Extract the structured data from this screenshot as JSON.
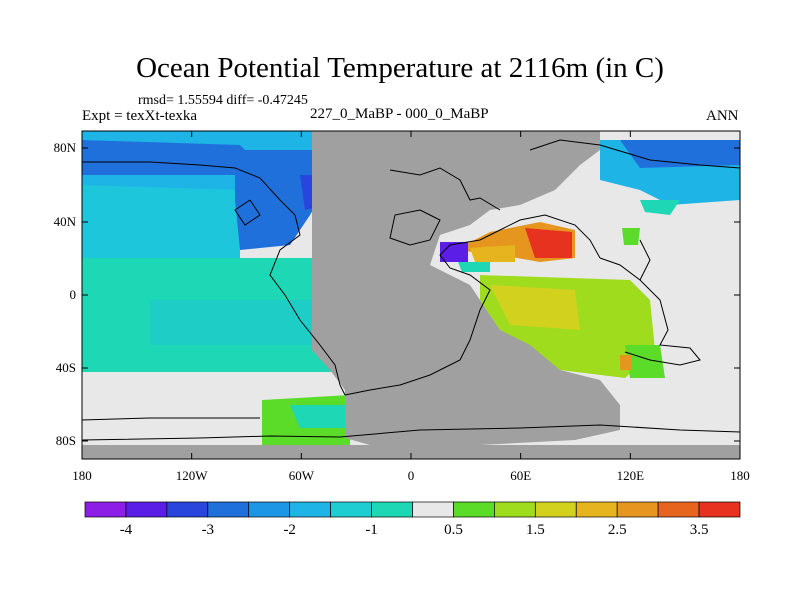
{
  "title": "Ocean Potential Temperature at 2116m (in C)",
  "stats": "rmsd= 1.55594 diff= -0.47245",
  "experiment": "Expt = texXt-texka",
  "comparison": "227_0_MaBP - 000_0_MaBP",
  "season": "ANN",
  "lat_labels": [
    "80N",
    "40N",
    "0",
    "40S",
    "80S"
  ],
  "lon_labels": [
    "180",
    "120W",
    "60W",
    "0",
    "60E",
    "120E",
    "180"
  ],
  "colorbar": {
    "colors": [
      "#8c1ee6",
      "#5a1ee6",
      "#2846dc",
      "#2070dc",
      "#1e96e6",
      "#1eb4e6",
      "#1ecdd2",
      "#1ed7b4",
      "#e8e8e8",
      "#5adc28",
      "#a0dc1e",
      "#d2d21e",
      "#e6b41e",
      "#e6961e",
      "#e6641e",
      "#e6321e"
    ],
    "labels": [
      "-4",
      "-3",
      "-2",
      "-1",
      "0.5",
      "1.5",
      "2.5",
      "3.5"
    ]
  },
  "colors": {
    "land": "#a0a0a0",
    "no_data": "#e8e8e8"
  }
}
